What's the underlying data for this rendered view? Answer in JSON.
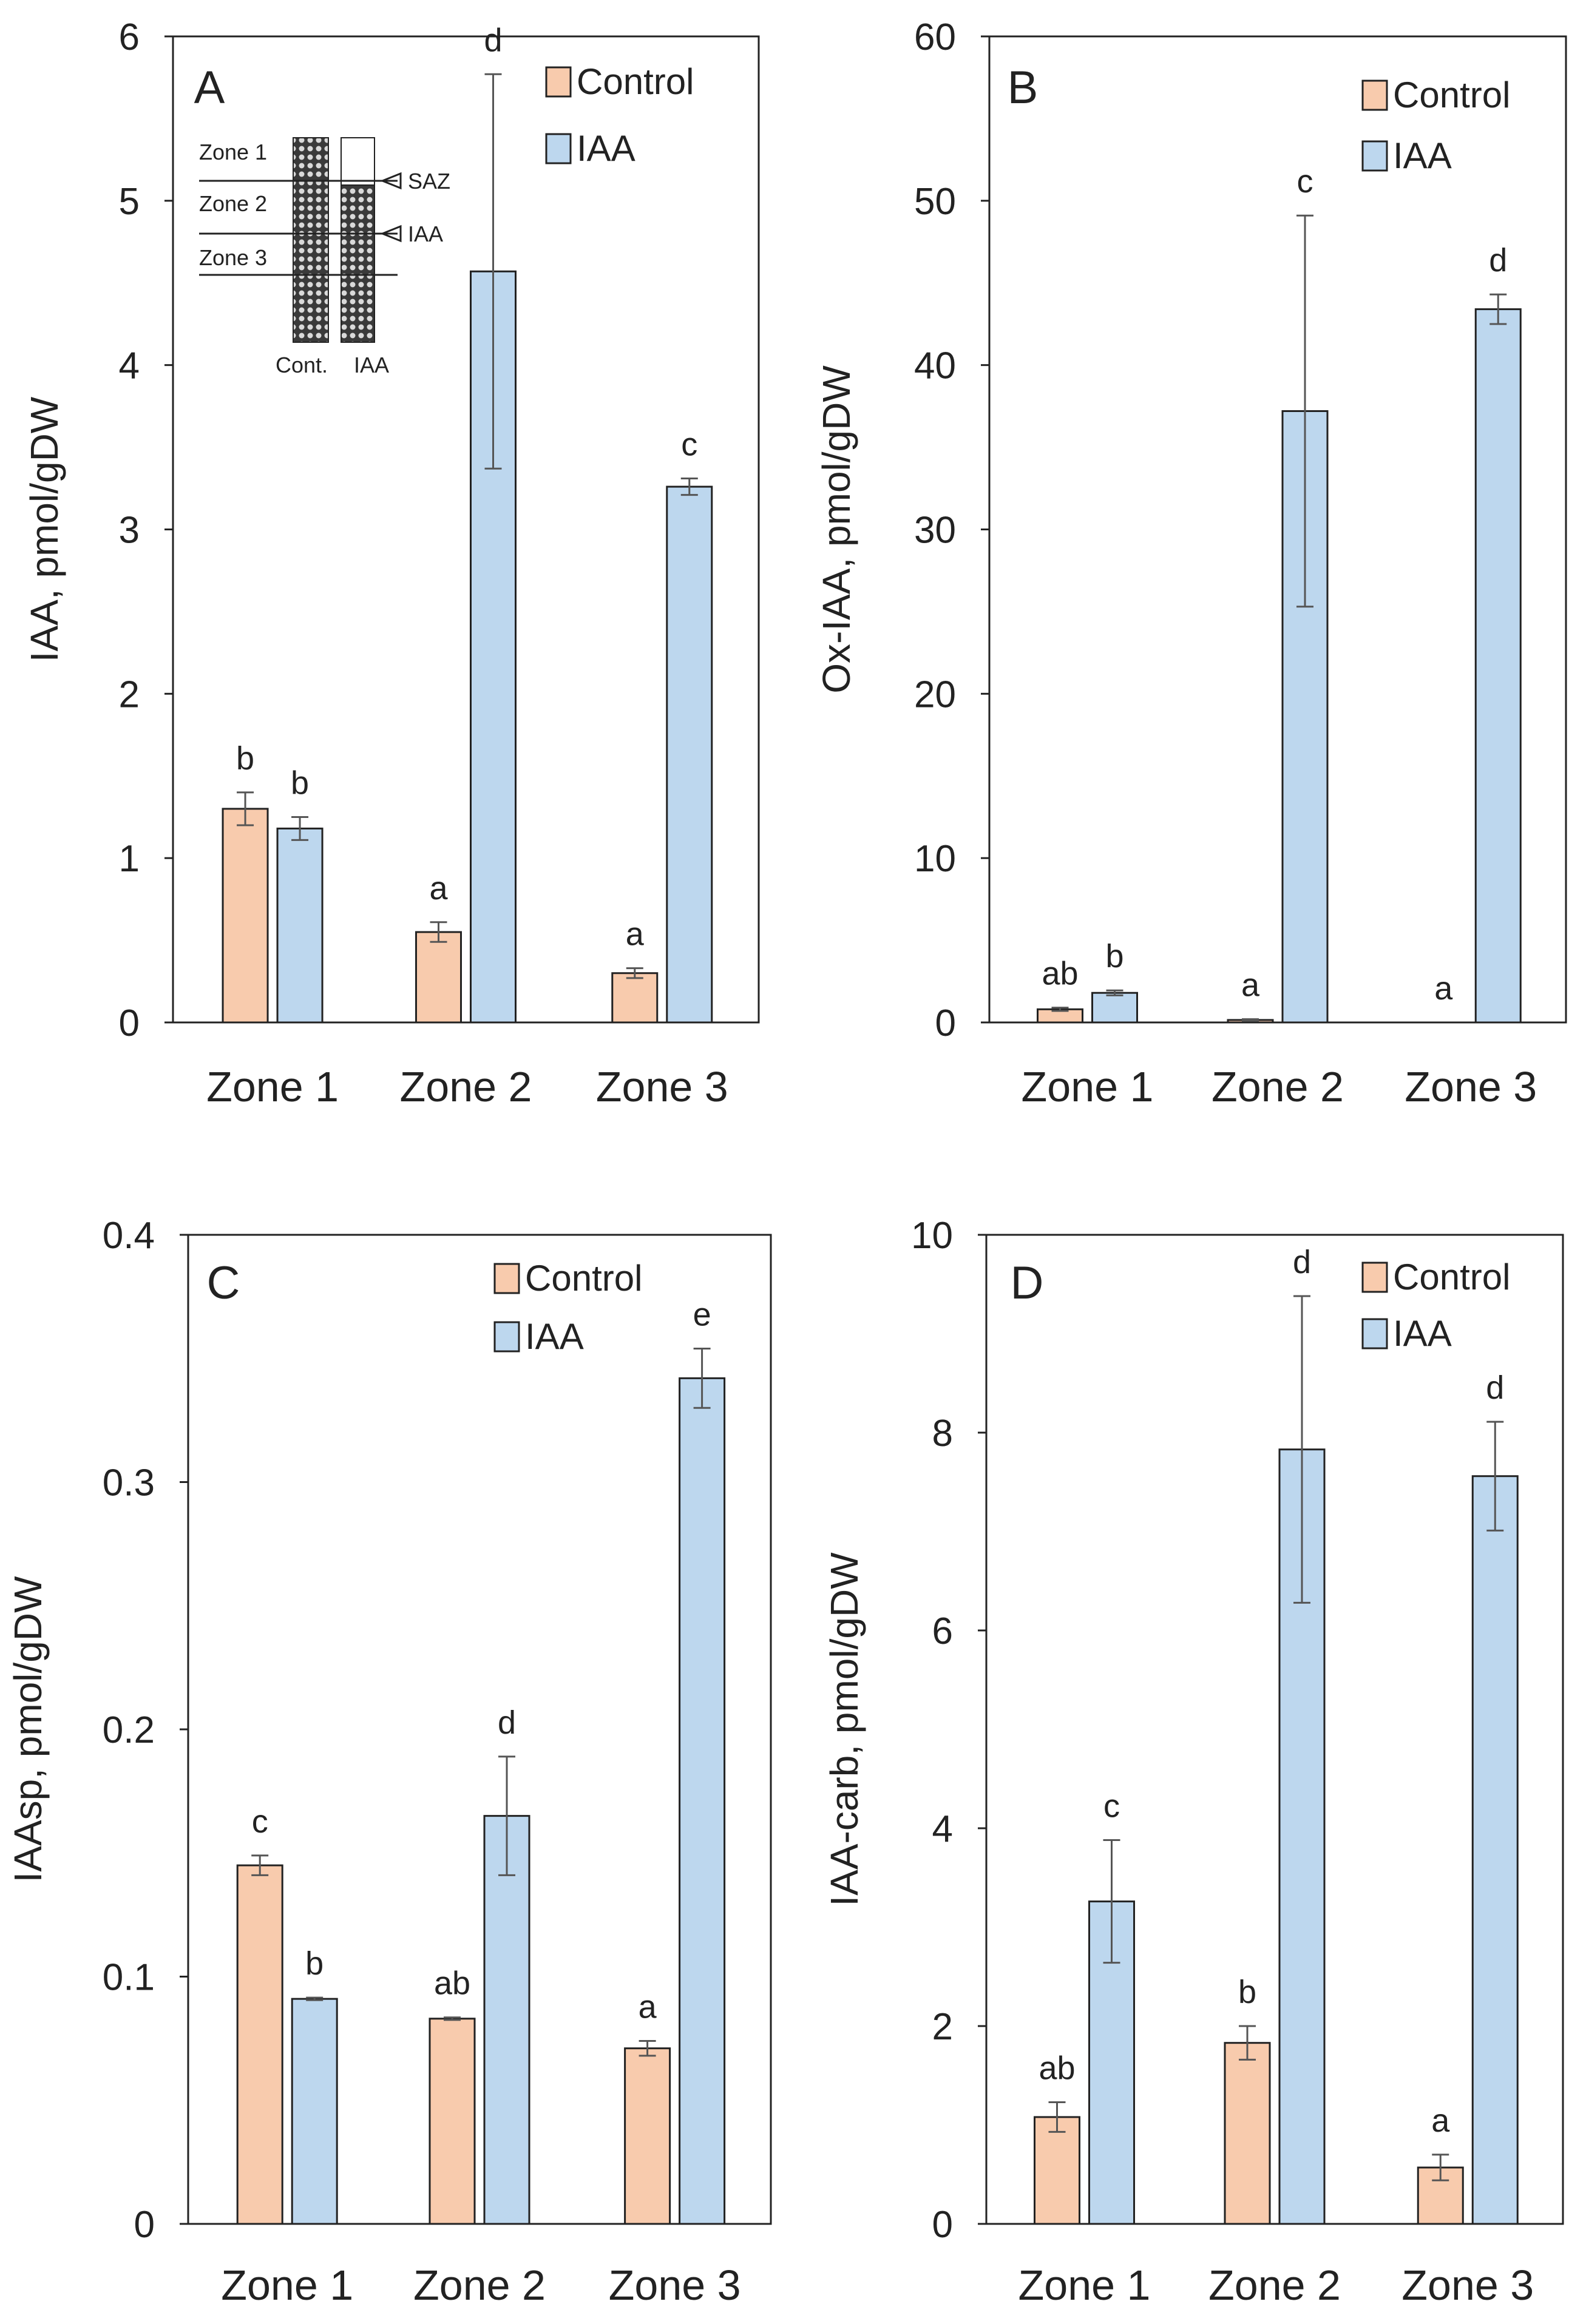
{
  "chart_data": [
    {
      "type": "bar",
      "panel": "A",
      "ylabel": "IAA, pmol/gDW",
      "ylim": [
        0,
        6
      ],
      "yticks": [
        "0",
        "1",
        "2",
        "3",
        "4",
        "5",
        "6"
      ],
      "categories": [
        "Zone 1",
        "Zone 2",
        "Zone 3"
      ],
      "series": [
        {
          "name": "Control",
          "color": "#F8CBAD",
          "values": [
            1.3,
            0.55,
            0.3
          ],
          "errors": [
            0.1,
            0.06,
            0.03
          ],
          "labels": [
            "b",
            "a",
            "a"
          ]
        },
        {
          "name": "IAA",
          "color": "#BDD7EE",
          "values": [
            1.18,
            4.57,
            3.26
          ],
          "errors": [
            0.07,
            1.2,
            0.05
          ],
          "labels": [
            "b",
            "d",
            "c"
          ]
        }
      ],
      "legend": [
        "Control",
        "IAA"
      ],
      "inset": {
        "zone_labels": [
          "Zone 1",
          "Zone 2",
          "Zone 3"
        ],
        "markers": [
          "SAZ",
          "IAA"
        ],
        "columns": [
          "Cont.",
          "IAA"
        ]
      }
    },
    {
      "type": "bar",
      "panel": "B",
      "ylabel": "Ox-IAA, pmol/gDW",
      "ylim": [
        0,
        60
      ],
      "yticks": [
        "0",
        "10",
        "20",
        "30",
        "40",
        "50",
        "60"
      ],
      "categories": [
        "Zone 1",
        "Zone 2",
        "Zone 3"
      ],
      "series": [
        {
          "name": "Control",
          "color": "#F8CBAD",
          "values": [
            0.8,
            0.15,
            0
          ],
          "errors": [
            0.1,
            0.05,
            0
          ],
          "labels": [
            "ab",
            "a",
            "a"
          ]
        },
        {
          "name": "IAA",
          "color": "#BDD7EE",
          "values": [
            1.8,
            37.2,
            43.4
          ],
          "errors": [
            0.15,
            11.9,
            0.9
          ],
          "labels": [
            "b",
            "c",
            "d"
          ]
        }
      ],
      "legend": [
        "Control",
        "IAA"
      ]
    },
    {
      "type": "bar",
      "panel": "C",
      "ylabel": "IAAsp, pmol/gDW",
      "ylim": [
        0,
        0.4
      ],
      "yticks": [
        "0",
        "0.1",
        "0.2",
        "0.3",
        "0.4"
      ],
      "categories": [
        "Zone 1",
        "Zone 2",
        "Zone 3"
      ],
      "series": [
        {
          "name": "Control",
          "color": "#F8CBAD",
          "values": [
            0.145,
            0.083,
            0.071
          ],
          "errors": [
            0.004,
            0.0005,
            0.003
          ],
          "labels": [
            "c",
            "ab",
            "a"
          ]
        },
        {
          "name": "IAA",
          "color": "#BDD7EE",
          "values": [
            0.091,
            0.165,
            0.342
          ],
          "errors": [
            0.0005,
            0.024,
            0.012
          ],
          "labels": [
            "b",
            "d",
            "e"
          ]
        }
      ],
      "legend": [
        "Control",
        "IAA"
      ]
    },
    {
      "type": "bar",
      "panel": "D",
      "ylabel": "IAA-carb, pmol/gDW",
      "ylim": [
        0,
        10
      ],
      "yticks": [
        "0",
        "2",
        "4",
        "6",
        "8",
        "10"
      ],
      "categories": [
        "Zone 1",
        "Zone 2",
        "Zone 3"
      ],
      "series": [
        {
          "name": "Control",
          "color": "#F8CBAD",
          "values": [
            1.08,
            1.83,
            0.57
          ],
          "errors": [
            0.15,
            0.17,
            0.13
          ],
          "labels": [
            "ab",
            "b",
            "a"
          ]
        },
        {
          "name": "IAA",
          "color": "#BDD7EE",
          "values": [
            3.26,
            7.83,
            7.56
          ],
          "errors": [
            0.62,
            1.55,
            0.55
          ],
          "labels": [
            "c",
            "d",
            "d"
          ]
        }
      ],
      "legend": [
        "Control",
        "IAA"
      ]
    }
  ]
}
